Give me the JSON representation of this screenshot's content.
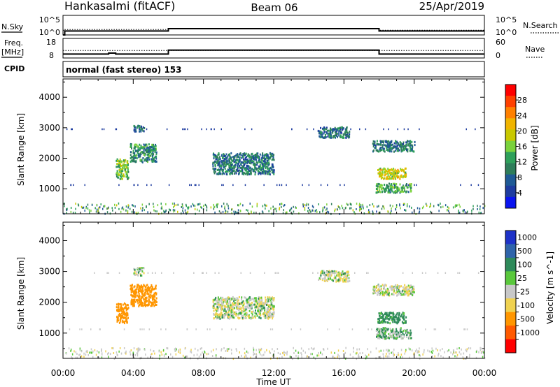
{
  "header": {
    "station": "Hankasalmi (fitACF)",
    "beam": "Beam 06",
    "date": "25/Apr/2019"
  },
  "top_panels": {
    "nsky_label": "N.Sky",
    "nsky_ticks": [
      "10^5",
      "10^0"
    ],
    "nsearch_label": "N.Search",
    "nsearch_ticks": [
      "10^5",
      "10^0"
    ],
    "freq_label": "Freq.",
    "freq_unit": "[MHz]",
    "freq_ticks": [
      "18",
      "8"
    ],
    "nave_label": "Nave",
    "nave_ticks": [
      "60",
      "0"
    ],
    "cpid_label": "CPID",
    "cpid_text": "normal (fast stereo) 153"
  },
  "power_colorbar": {
    "label": "Power [dB]",
    "ticks": [
      "28",
      "24",
      "20",
      "16",
      "12",
      "8",
      "4"
    ],
    "colors": [
      "#ff0000",
      "#ff4000",
      "#ff8000",
      "#f0b400",
      "#c8c800",
      "#7ad23c",
      "#2ea05a",
      "#2e7d5a",
      "#1f5a96",
      "#1e3ca0",
      "#0a14f0"
    ]
  },
  "velocity_colorbar": {
    "label": "Velocity [m s^-1]",
    "ticks": [
      "1000",
      "500",
      "100",
      "25",
      "-25",
      "-100",
      "-500",
      "-1000"
    ],
    "colors": [
      "#1e32c8",
      "#2f64aa",
      "#2e8a5a",
      "#5ac83c",
      "#c8c8c8",
      "#f0d250",
      "#ff9600",
      "#ff5a00",
      "#ff0000"
    ]
  },
  "x_ticks": [
    "00:00",
    "04:00",
    "08:00",
    "12:00",
    "16:00",
    "20:00",
    "00:00"
  ],
  "xlabel": "Time UT",
  "ylabel": "Slant Range [km]",
  "y_ticks": [
    "4000",
    "3000",
    "2000",
    "1000"
  ],
  "chart_data": [
    {
      "type": "line",
      "panel": "N.Sky / N.Search",
      "x_hours": [
        0,
        0.1,
        6,
        18,
        24
      ],
      "nsky_log10": [
        0,
        1.0,
        1.6,
        1.0,
        1.0
      ],
      "nsearch_log10": [
        1.2,
        1.4,
        1.7,
        1.2,
        1.2
      ],
      "ylim": [
        0,
        5
      ]
    },
    {
      "type": "line",
      "panel": "Freq. / Nave",
      "x_hours": [
        0,
        2.6,
        3.0,
        6,
        18,
        24
      ],
      "freq_mhz": [
        10.0,
        10.5,
        10.0,
        12.0,
        10.0,
        10.0
      ],
      "nave": [
        23,
        23,
        23,
        23,
        23,
        23
      ],
      "ylim_freq": [
        8,
        18
      ],
      "ylim_nave": [
        0,
        60
      ]
    },
    {
      "type": "scatter",
      "panel": "Power",
      "xlim": [
        0,
        24
      ],
      "ylim": [
        180,
        4600
      ],
      "clusters": [
        {
          "x": [
            3.0,
            3.7
          ],
          "y": [
            1350,
            2000
          ],
          "power": 14
        },
        {
          "x": [
            3.8,
            5.3
          ],
          "y": [
            1900,
            2500
          ],
          "power": 10
        },
        {
          "x": [
            4.0,
            4.6
          ],
          "y": [
            2900,
            3100
          ],
          "power": 7
        },
        {
          "x": [
            8.5,
            12.0
          ],
          "y": [
            1500,
            2200
          ],
          "power": 8
        },
        {
          "x": [
            14.5,
            16.3
          ],
          "y": [
            2700,
            3050
          ],
          "power": 8
        },
        {
          "x": [
            17.6,
            20.0
          ],
          "y": [
            2250,
            2600
          ],
          "power": 8
        },
        {
          "x": [
            17.9,
            19.5
          ],
          "y": [
            1350,
            1700
          ],
          "power": 18
        },
        {
          "x": [
            17.8,
            19.8
          ],
          "y": [
            900,
            1200
          ],
          "power": 12
        }
      ]
    },
    {
      "type": "scatter",
      "panel": "Velocity",
      "xlim": [
        0,
        24
      ],
      "ylim": [
        180,
        4600
      ],
      "clusters": [
        {
          "x": [
            3.0,
            3.7
          ],
          "y": [
            1350,
            2000
          ],
          "velocity": -300
        },
        {
          "x": [
            3.8,
            5.3
          ],
          "y": [
            1900,
            2600
          ],
          "velocity": -200
        },
        {
          "x": [
            4.0,
            4.6
          ],
          "y": [
            2900,
            3150
          ],
          "velocity": 0
        },
        {
          "x": [
            8.5,
            12.0
          ],
          "y": [
            1500,
            2200
          ],
          "velocity": 0
        },
        {
          "x": [
            14.5,
            16.3
          ],
          "y": [
            2700,
            3050
          ],
          "velocity": 0
        },
        {
          "x": [
            17.6,
            20.0
          ],
          "y": [
            2250,
            2600
          ],
          "velocity": 0
        },
        {
          "x": [
            17.9,
            19.5
          ],
          "y": [
            1350,
            1700
          ],
          "velocity": 100
        },
        {
          "x": [
            17.8,
            19.8
          ],
          "y": [
            850,
            1200
          ],
          "velocity": 50
        }
      ]
    }
  ]
}
